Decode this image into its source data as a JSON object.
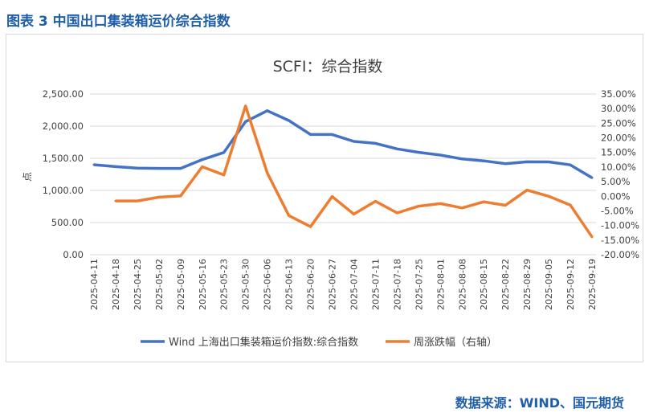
{
  "header": {
    "title": "图表 3  中国出口集装箱运价综合指数"
  },
  "footer": {
    "source": "数据来源：WIND、国元期货"
  },
  "chart_data": {
    "type": "line",
    "title": "SCFI：综合指数",
    "ylabel": "点",
    "ylim": [
      0,
      2500
    ],
    "y2lim": [
      -20,
      35
    ],
    "yticks": [
      "0.00",
      "500.00",
      "1,000.00",
      "1,500.00",
      "2,000.00",
      "2,500.00"
    ],
    "y2ticks": [
      "-20.00%",
      "-15.00%",
      "-10.00%",
      "-5.00%",
      "0.00%",
      "5.00%",
      "10.00%",
      "15.00%",
      "20.00%",
      "25.00%",
      "30.00%",
      "35.00%"
    ],
    "grid": true,
    "legend_position": "bottom",
    "categories": [
      "2025-04-11",
      "2025-04-18",
      "2025-04-25",
      "2025-05-02",
      "2025-05-09",
      "2025-05-16",
      "2025-05-23",
      "2025-05-30",
      "2025-06-06",
      "2025-06-13",
      "2025-06-20",
      "2025-06-27",
      "2025-07-04",
      "2025-07-11",
      "2025-07-18",
      "2025-07-25",
      "2025-08-01",
      "2025-08-08",
      "2025-08-15",
      "2025-08-22",
      "2025-08-29",
      "2025-09-05",
      "2025-09-12",
      "2025-09-19"
    ],
    "series": [
      {
        "name": "Wind 上海出口集装箱运价指数:综合指数",
        "axis": "left",
        "color": "#4472c4",
        "values": [
          1400,
          1370,
          1347,
          1343,
          1343,
          1480,
          1590,
          2070,
          2240,
          2088,
          1870,
          1870,
          1763,
          1733,
          1646,
          1593,
          1550,
          1490,
          1460,
          1416,
          1445,
          1444,
          1398,
          1198
        ]
      },
      {
        "name": "周涨跌幅（右轴）",
        "axis": "right",
        "color": "#ed7d31",
        "values": [
          null,
          -1.6,
          -1.6,
          -0.3,
          0.1,
          10.1,
          7.3,
          30.9,
          8.0,
          -6.6,
          -10.4,
          -0.1,
          -6.1,
          -1.7,
          -5.7,
          -3.4,
          -2.5,
          -4.0,
          -1.9,
          -3.1,
          2.1,
          0.0,
          -3.0,
          -13.9
        ]
      }
    ]
  }
}
